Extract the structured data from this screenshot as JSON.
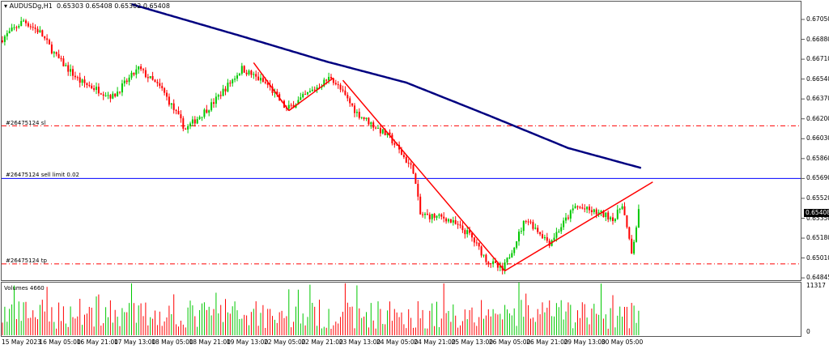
{
  "header": {
    "symbol": "AUDUSDg,H1",
    "ohlc": "0.65303 0.65408 0.65302 0.65408"
  },
  "price_axis": {
    "labels": [
      "0.67050",
      "0.66880",
      "0.66710",
      "0.66540",
      "0.66370",
      "0.66200",
      "0.66030",
      "0.65860",
      "0.65690",
      "0.65520",
      "0.65350",
      "0.65180",
      "0.65010",
      "0.64845"
    ],
    "current_price": "0.65408"
  },
  "orders": {
    "sl": {
      "label": "#26475124 sl",
      "price": 0.6614,
      "color": "#ff0000"
    },
    "sell_limit": {
      "label": "#26475124 sell limit 0.02",
      "price": 0.6569,
      "color": "#0000ff"
    },
    "tp": {
      "label": "#26475124 tp",
      "price": 0.6496,
      "color": "#ff0000"
    }
  },
  "volume": {
    "label": "Volumes 4660",
    "max_label": "11317",
    "zero_label": "0"
  },
  "time_axis": [
    "15 May 2023",
    "16 May 05:00",
    "16 May 21:00",
    "17 May 13:00",
    "18 May 05:00",
    "18 May 21:00",
    "19 May 13:00",
    "22 May 05:00",
    "22 May 21:00",
    "23 May 13:00",
    "24 May 05:00",
    "24 May 21:00",
    "25 May 13:00",
    "26 May 05:00",
    "26 May 21:00",
    "29 May 13:00",
    "30 May 05:00"
  ],
  "colors": {
    "bull": "#00c800",
    "bear": "#ff0000",
    "ma": "#000080",
    "trend": "#ff0000"
  },
  "chart_data": {
    "type": "candlestick",
    "bars": 272,
    "price_path": [
      [
        0,
        0.6687
      ],
      [
        10,
        0.6704
      ],
      [
        17,
        0.6694
      ],
      [
        24,
        0.6673
      ],
      [
        34,
        0.6652
      ],
      [
        48,
        0.6639
      ],
      [
        59,
        0.6663
      ],
      [
        69,
        0.6645
      ],
      [
        79,
        0.6611
      ],
      [
        90,
        0.6632
      ],
      [
        103,
        0.6663
      ],
      [
        114,
        0.6649
      ],
      [
        122,
        0.6628
      ],
      [
        141,
        0.6656
      ],
      [
        152,
        0.6625
      ],
      [
        166,
        0.6604
      ],
      [
        176,
        0.6576
      ],
      [
        179,
        0.6538
      ],
      [
        190,
        0.6535
      ],
      [
        200,
        0.6521
      ],
      [
        207,
        0.65
      ],
      [
        214,
        0.649
      ],
      [
        224,
        0.6535
      ],
      [
        234,
        0.6514
      ],
      [
        245,
        0.6545
      ],
      [
        262,
        0.6535
      ],
      [
        265,
        0.6548
      ],
      [
        269,
        0.6504
      ],
      [
        272,
        0.654
      ]
    ],
    "moving_average": [
      [
        55,
        0.6718
      ],
      [
        103,
        0.669
      ],
      [
        138,
        0.6669
      ],
      [
        172,
        0.6651
      ],
      [
        207,
        0.6623
      ],
      [
        241,
        0.6595
      ],
      [
        272,
        0.6578
      ]
    ],
    "trend_lines": [
      [
        [
          107,
          0.6668
        ],
        [
          122,
          0.6627
        ]
      ],
      [
        [
          122,
          0.6627
        ],
        [
          141,
          0.6655
        ]
      ],
      [
        [
          145,
          0.6653
        ],
        [
          214,
          0.649
        ]
      ],
      [
        [
          214,
          0.649
        ],
        [
          277,
          0.6566
        ]
      ]
    ],
    "y_range": [
      0.6483,
      0.6722
    ]
  }
}
